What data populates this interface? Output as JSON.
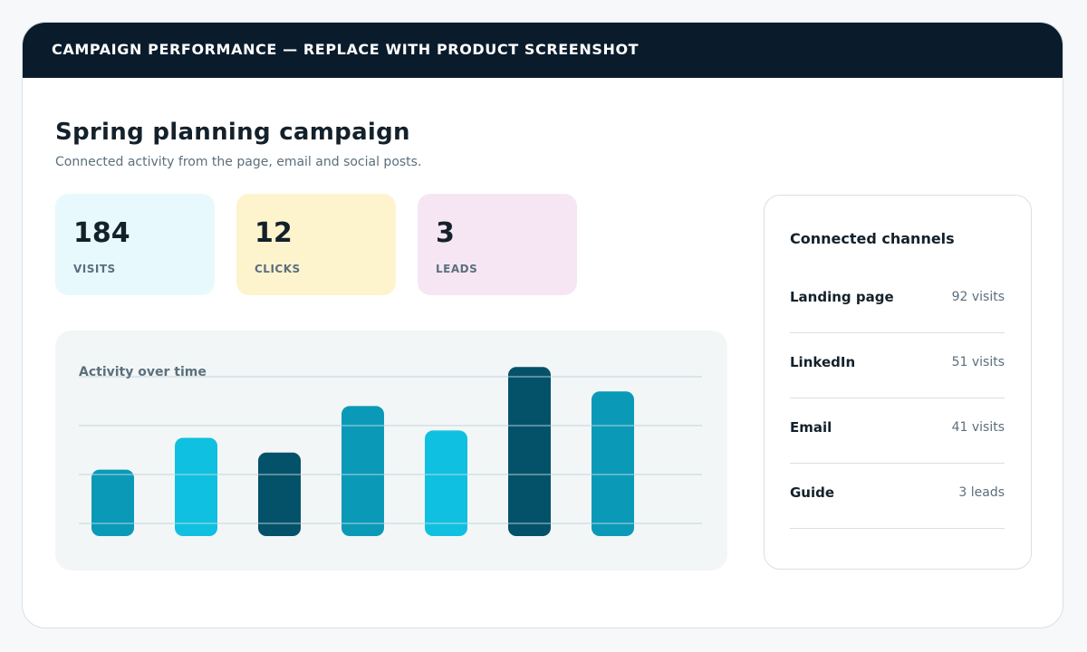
{
  "header": {
    "title": "CAMPAIGN PERFORMANCE — REPLACE WITH PRODUCT SCREENSHOT"
  },
  "campaign": {
    "title": "Spring planning campaign",
    "subtitle": "Connected activity from the page, email and social posts."
  },
  "stats": [
    {
      "value": "184",
      "label": "VISITS"
    },
    {
      "value": "12",
      "label": "CLICKS"
    },
    {
      "value": "3",
      "label": "LEADS"
    }
  ],
  "activity_chart": {
    "title": "Activity over time"
  },
  "chart_data": {
    "type": "bar",
    "title": "Activity over time",
    "categories": [
      "",
      "",
      "",
      "",
      "",
      "",
      ""
    ],
    "values": [
      1.1,
      1.75,
      1.45,
      2.4,
      1.9,
      3.2,
      2.7
    ],
    "bar_colors": [
      "#0a9ab8",
      "#10c0e0",
      "#04526a",
      "#0a9ab8",
      "#10c0e0",
      "#04526a",
      "#0a9ab8"
    ],
    "ylim": [
      0,
      3
    ],
    "gridlines": [
      0,
      1,
      2,
      3
    ],
    "grid": true,
    "xlabel": "",
    "ylabel": ""
  },
  "channels": {
    "title": "Connected channels",
    "items": [
      {
        "name": "Landing page",
        "value": "92 visits"
      },
      {
        "name": "LinkedIn",
        "value": "51 visits"
      },
      {
        "name": "Email",
        "value": "41 visits"
      },
      {
        "name": "Guide",
        "value": "3 leads"
      }
    ]
  },
  "colors": {
    "header_bg": "#0a1c2c",
    "visits_card": "#e8f9fd",
    "clicks_card": "#fdf4cd",
    "leads_card": "#f6e6f4",
    "gridline": "#d5e2e6"
  }
}
